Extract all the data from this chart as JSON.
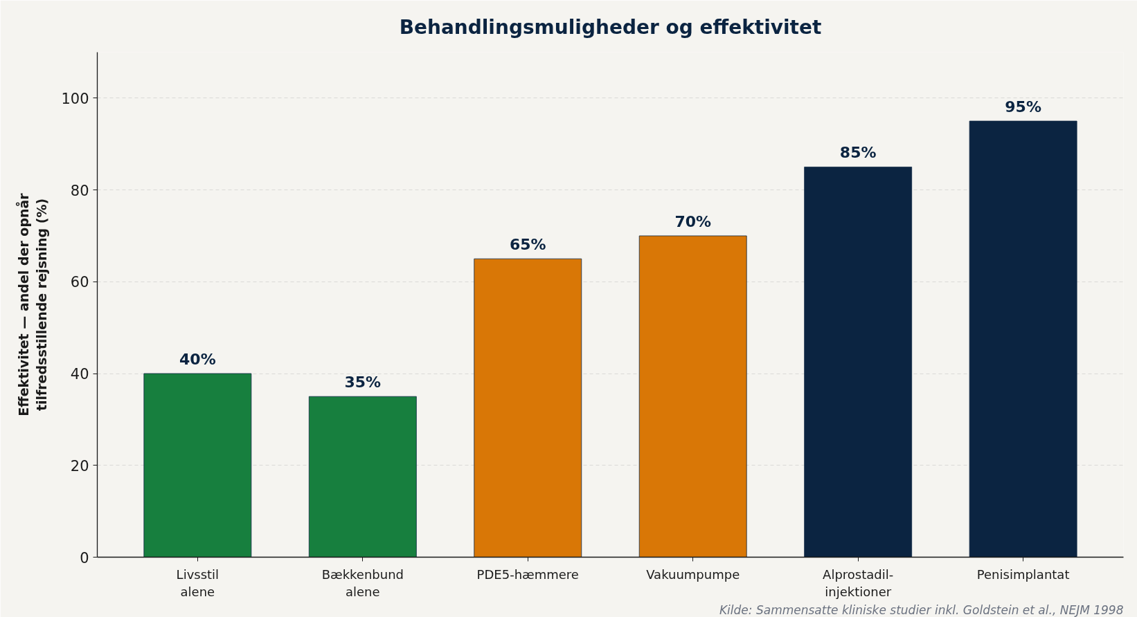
{
  "chart_data": {
    "type": "bar",
    "title": "Behandlingsmuligheder og effektivitet",
    "ylabel": "Effektivitet — andel der opnår\ntilfredsstillende rejsning (%)",
    "categories": [
      "Livsstil\nalene",
      "Bækkenbund\nalene",
      "PDE5-hæmmere",
      "Vakuumpumpe",
      "Alprostadil-\ninjektioner",
      "Penisimplantat"
    ],
    "values": [
      40,
      35,
      65,
      70,
      85,
      95
    ],
    "colors": [
      "#177f3e",
      "#177f3e",
      "#d97706",
      "#d97706",
      "#0b2441",
      "#0b2441"
    ],
    "value_labels": [
      "40%",
      "35%",
      "65%",
      "70%",
      "85%",
      "95%"
    ],
    "ylim": [
      0,
      110
    ],
    "yticks": [
      0,
      20,
      40,
      60,
      80,
      100
    ],
    "grid": "y",
    "annotations": [
      "Kilde: Sammensatte kliniske studier inkl. Goldstein et al., NEJM 1998"
    ]
  }
}
